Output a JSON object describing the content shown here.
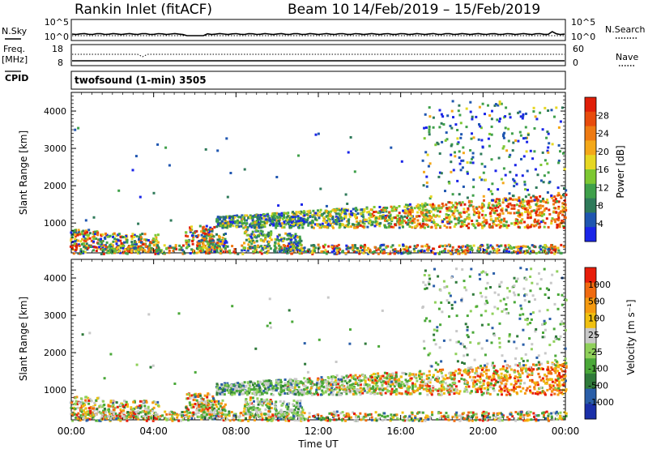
{
  "header": {
    "station": "Rankin Inlet (fitACF)",
    "beam": "Beam 10",
    "date_range": "14/Feb/2019 – 15/Feb/2019"
  },
  "nsky_panel": {
    "left_label": "N.Sky",
    "left_ticks": [
      "10^5",
      "10^0"
    ],
    "right_label": "N.Search",
    "right_ticks": [
      "10^5",
      "10^0"
    ]
  },
  "freq_panel": {
    "left_label_1": "Freq.",
    "left_label_2": "[MHz]",
    "left_ticks": [
      "18",
      "8"
    ],
    "right_label": "Nave",
    "right_ticks": [
      "60",
      "0"
    ]
  },
  "cpid": {
    "label": "CPID",
    "program": "twofsound (1-min) 3505"
  },
  "chart_data": [
    {
      "type": "heatmap",
      "title": "",
      "ylabel": "Slant Range [km]",
      "xlabel": "",
      "x_range": [
        0,
        24
      ],
      "y_range": [
        200,
        4500
      ],
      "yticks": [
        1000,
        2000,
        3000,
        4000
      ],
      "colorbar": {
        "label": "Power [dB]",
        "ticks": [
          "4",
          "8",
          "12",
          "16",
          "20",
          "24",
          "28"
        ],
        "colors": [
          "#1a25e8",
          "#1f56b0",
          "#2f7a5a",
          "#3fa04a",
          "#7dc832",
          "#e6d722",
          "#f4a818",
          "#ee7a12",
          "#e84b0c",
          "#e01e08"
        ]
      }
    },
    {
      "type": "heatmap",
      "title": "",
      "ylabel": "Slant Range [km]",
      "xlabel": "Time UT",
      "x_range": [
        0,
        24
      ],
      "xtick_labels": [
        "00:00",
        "04:00",
        "08:00",
        "12:00",
        "16:00",
        "20:00",
        "00:00"
      ],
      "y_range": [
        200,
        4500
      ],
      "yticks": [
        1000,
        2000,
        3000,
        4000
      ],
      "colorbar": {
        "label": "Velocity [m s⁻¹]",
        "ticks": [
          "1000",
          "500",
          "100",
          "25",
          "-25",
          "-100",
          "-500",
          "-1000"
        ],
        "colors": [
          "#1a2fa8",
          "#2a5ea8",
          "#2f7a3a",
          "#4aa838",
          "#8fd05a",
          "#c8c8c8",
          "#f0c010",
          "#f59a10",
          "#f06a10",
          "#e81d0a"
        ]
      }
    }
  ]
}
